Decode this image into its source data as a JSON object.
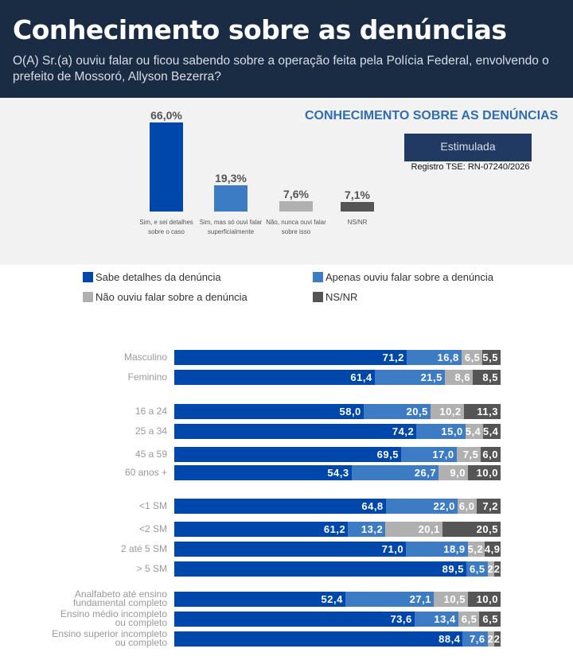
{
  "header": {
    "title": "Conhecimento sobre as denúncias",
    "question": "O(A) Sr.(a) ouviu falar ou ficou sabendo sobre a operação feita pela Polícia Federal, envolvendo o prefeito de Mossoró, Allyson Bezerra?"
  },
  "badge": "Estimulada",
  "registro": "Registro TSE: RN-07240/2026",
  "colors": {
    "detalhes": "#0047ab",
    "apenas": "#3d7cc4",
    "nao": "#b0b0b0",
    "nsnr": "#555555",
    "header_bg": "#1a2b44"
  },
  "chart_data": [
    {
      "type": "bar",
      "title": "CONHECIMENTO SOBRE AS DENÚNCIAS",
      "categories": [
        "Sim, e sei detalhes sobre o caso",
        "Sim, mas só ouvi falar superficialmente",
        "Não, nunca ouvi falar sobre isso",
        "NS/NR"
      ],
      "values": [
        66.0,
        19.3,
        7.6,
        7.1
      ],
      "labels": [
        "66,0%",
        "19,3%",
        "7,6%",
        "7,1%"
      ]
    },
    {
      "type": "bar",
      "orientation": "horizontal",
      "stacked": true,
      "legend": [
        "Sabe detalhes da denúncia",
        "Apenas ouviu falar sobre a denúncia",
        "Não ouviu falar sobre a denúncia",
        "NS/NR"
      ],
      "legend_position": "top",
      "rows": [
        {
          "label": "Masculino",
          "values": [
            "71,2",
            "16,8",
            "6,5",
            "5,5"
          ]
        },
        {
          "label": "Feminino",
          "values": [
            "61,4",
            "21,5",
            "8,6",
            "8,5"
          ]
        },
        {
          "label": "16 a 24",
          "values": [
            "58,0",
            "20,5",
            "10,2",
            "11,3"
          ]
        },
        {
          "label": "25 a 34",
          "values": [
            "74,2",
            "15,0",
            "5,4",
            "5,4"
          ]
        },
        {
          "label": "45 a 59",
          "values": [
            "69,5",
            "17,0",
            "7,5",
            "6,0"
          ]
        },
        {
          "label": "60 anos +",
          "values": [
            "54,3",
            "26,7",
            "9,0",
            "10,0"
          ]
        },
        {
          "label": "<1 SM",
          "values": [
            "64,8",
            "22,0",
            "6,0",
            "7,2"
          ]
        },
        {
          "label": "<2 SM",
          "values": [
            "61,2",
            "13,2",
            "20,1",
            "20,5"
          ]
        },
        {
          "label": "2 até 5 SM",
          "values": [
            "71,0",
            "18,9",
            "5,2",
            "4,9"
          ]
        },
        {
          "label": "> 5 SM",
          "values": [
            "89,5",
            "6,5",
            "2",
            "2"
          ]
        },
        {
          "label": "Analfabeto até ensino fundamental completo",
          "values": [
            "52,4",
            "27,1",
            "10,5",
            "10,0"
          ]
        },
        {
          "label": "Ensino médio incompleto ou completo",
          "values": [
            "73,6",
            "13,4",
            "6,5",
            "6,5"
          ]
        },
        {
          "label": "Ensino superior incompleto ou completo",
          "values": [
            "88,4",
            "7,6",
            "2",
            "2"
          ]
        }
      ]
    }
  ]
}
